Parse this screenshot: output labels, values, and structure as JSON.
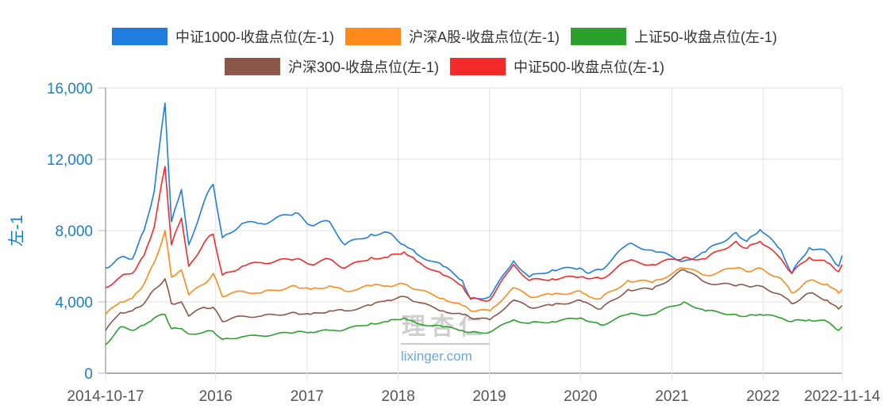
{
  "chart_data": {
    "type": "line",
    "title": "",
    "xlabel": "",
    "ylabel": "左-1",
    "ylim": [
      0,
      16000
    ],
    "yticks": [
      "0",
      "4,000",
      "8,000",
      "12,000",
      "16,000"
    ],
    "ytick_values": [
      0,
      4000,
      8000,
      12000,
      16000
    ],
    "xticks": [
      {
        "label": "2014-10-17",
        "date": "2014-10-17"
      },
      {
        "label": "2016",
        "date": "2016-01-01"
      },
      {
        "label": "2017",
        "date": "2017-01-01"
      },
      {
        "label": "2018",
        "date": "2018-01-01"
      },
      {
        "label": "2019",
        "date": "2019-01-01"
      },
      {
        "label": "2020",
        "date": "2020-01-01"
      },
      {
        "label": "2021",
        "date": "2021-01-01"
      },
      {
        "label": "2022",
        "date": "2022-01-01"
      },
      {
        "label": "2022-11-14",
        "date": "2022-11-14"
      }
    ],
    "xlim": [
      "2014-10-17",
      "2022-11-14"
    ],
    "grid": true,
    "legend_position": "top",
    "x": [
      "2014-10-17",
      "2014-12-15",
      "2015-02-01",
      "2015-03-20",
      "2015-04-30",
      "2015-06-12",
      "2015-07-08",
      "2015-08-17",
      "2015-09-15",
      "2015-11-15",
      "2015-12-22",
      "2016-01-28",
      "2016-04-15",
      "2016-07-01",
      "2016-11-15",
      "2017-01-15",
      "2017-04-01",
      "2017-06-01",
      "2017-09-15",
      "2017-11-20",
      "2018-01-25",
      "2018-03-15",
      "2018-06-30",
      "2018-09-15",
      "2018-10-18",
      "2019-01-03",
      "2019-04-08",
      "2019-06-10",
      "2019-09-10",
      "2019-12-31",
      "2020-02-03",
      "2020-03-23",
      "2020-07-10",
      "2020-10-15",
      "2021-02-18",
      "2021-05-15",
      "2021-09-15",
      "2021-10-28",
      "2021-12-20",
      "2022-03-15",
      "2022-04-26",
      "2022-07-05",
      "2022-09-15",
      "2022-10-31",
      "2022-11-14"
    ],
    "series": [
      {
        "name": "中证1000-收盘点位(左-1)",
        "color": "#1f7de0",
        "values": [
          5900,
          6500,
          6400,
          8000,
          10200,
          15150,
          8500,
          10300,
          7200,
          9600,
          10600,
          7600,
          8400,
          8400,
          9000,
          8300,
          8500,
          7200,
          7800,
          7900,
          7200,
          6700,
          6000,
          5200,
          4150,
          4300,
          6300,
          5400,
          5800,
          5900,
          5600,
          5800,
          7250,
          6900,
          6300,
          6800,
          7900,
          7400,
          8050,
          6900,
          5600,
          7050,
          6800,
          6000,
          6600
        ]
      },
      {
        "name": "沪深A股-收盘点位(左-1)",
        "color": "#ff8a1a",
        "values": [
          3300,
          4000,
          4200,
          5000,
          6200,
          8000,
          5400,
          5800,
          4400,
          5000,
          5600,
          4300,
          4600,
          4500,
          4900,
          4700,
          4900,
          4600,
          4900,
          4900,
          5000,
          4700,
          4200,
          3800,
          3500,
          3500,
          4800,
          4300,
          4400,
          4600,
          4300,
          4200,
          5200,
          5100,
          5900,
          5500,
          5900,
          5700,
          5900,
          5300,
          4500,
          5200,
          5000,
          4500,
          4700
        ]
      },
      {
        "name": "上证50-收盘点位(左-1)",
        "color": "#2ca02c",
        "values": [
          1600,
          2600,
          2400,
          2700,
          3100,
          3300,
          2500,
          2500,
          2200,
          2300,
          2350,
          1900,
          2050,
          2100,
          2300,
          2300,
          2400,
          2450,
          2800,
          2900,
          3100,
          2800,
          2600,
          2400,
          2300,
          2300,
          3000,
          2800,
          2900,
          3100,
          2900,
          2700,
          3300,
          3300,
          4000,
          3500,
          3300,
          3200,
          3300,
          3100,
          2900,
          3000,
          2900,
          2400,
          2600
        ]
      },
      {
        "name": "沪深300-收盘点位(左-1)",
        "color": "#8c564b",
        "values": [
          2400,
          3400,
          3500,
          3900,
          4700,
          5300,
          3900,
          4000,
          3200,
          3700,
          3700,
          2900,
          3200,
          3200,
          3400,
          3300,
          3500,
          3500,
          3800,
          4100,
          4300,
          4000,
          3500,
          3300,
          3100,
          3000,
          4100,
          3700,
          3800,
          4100,
          3900,
          3600,
          4700,
          4700,
          5800,
          5100,
          4900,
          4900,
          4900,
          4400,
          3900,
          4500,
          4100,
          3600,
          3800
        ]
      },
      {
        "name": "中证500-收盘点位(左-1)",
        "color": "#f22a2a",
        "values": [
          4800,
          5400,
          5600,
          6600,
          8200,
          11600,
          7200,
          8700,
          6000,
          7300,
          7800,
          5500,
          6000,
          6200,
          6400,
          6100,
          6400,
          5900,
          6500,
          6500,
          6800,
          6300,
          5500,
          4900,
          4200,
          4100,
          6100,
          5200,
          5300,
          5400,
          5300,
          5300,
          6300,
          6100,
          6500,
          6400,
          7400,
          7000,
          7400,
          6400,
          5600,
          6500,
          6200,
          5700,
          6100
        ]
      }
    ],
    "axis_color": "#1a7fc8"
  },
  "watermark": {
    "logo_text": "理杏仁",
    "site": "lixinger.com"
  }
}
